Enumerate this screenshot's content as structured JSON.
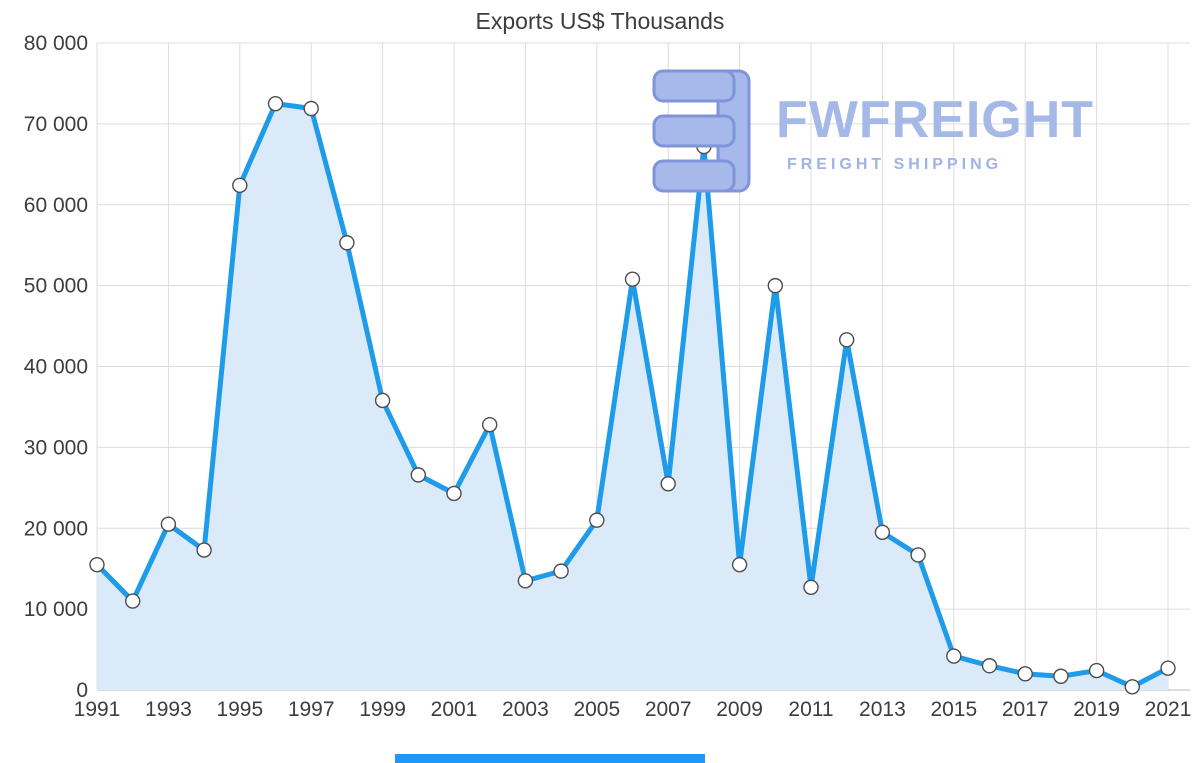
{
  "title": "Exports US$ Thousands",
  "watermark": {
    "brand": "FWFREIGHT",
    "tagline": "FREIGHT SHIPPING"
  },
  "chart_data": {
    "type": "area",
    "title": "Exports US$ Thousands",
    "xlabel": "",
    "ylabel": "",
    "x": [
      1991,
      1992,
      1993,
      1994,
      1995,
      1996,
      1997,
      1998,
      1999,
      2000,
      2001,
      2002,
      2003,
      2004,
      2005,
      2006,
      2007,
      2008,
      2009,
      2010,
      2011,
      2012,
      2013,
      2014,
      2015,
      2016,
      2017,
      2018,
      2019,
      2020,
      2021
    ],
    "values": [
      15500,
      11000,
      20500,
      17300,
      62400,
      72500,
      71900,
      55300,
      35800,
      26600,
      24300,
      32800,
      13500,
      14700,
      21000,
      50800,
      25500,
      67200,
      15500,
      50000,
      12700,
      43300,
      19500,
      16700,
      4200,
      3000,
      2000,
      1700,
      2400,
      400,
      2700
    ],
    "ylim": [
      0,
      80000
    ],
    "ytick_step": 10000,
    "xtick_start": 1991,
    "xtick_end": 2021,
    "xtick_step": 2,
    "grid": true,
    "legend": false,
    "marker": "circle",
    "colors": {
      "line": "#1e9be9",
      "area_fill": "#dbeaf8",
      "marker_fill": "#ffffff",
      "marker_stroke": "#4d4d4d",
      "grid": "#dcdcdc",
      "axis_line": "#b8b8b8",
      "axis_text": "#3d3d3d",
      "watermark_logo_fill": "#a7b8ea",
      "watermark_logo_outline": "#8094db",
      "watermark_text": "#a5b9e8",
      "watermark_tagline": "#9fb3e6",
      "bottom_bar": "#2196f3"
    }
  }
}
